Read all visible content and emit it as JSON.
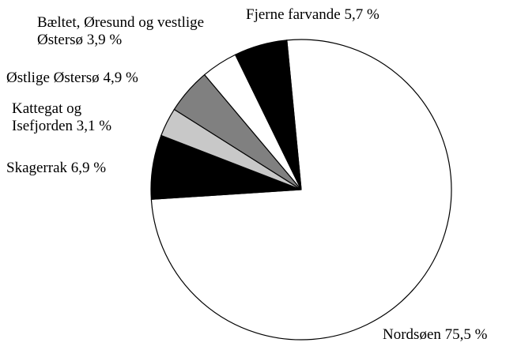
{
  "chart_data": {
    "type": "pie",
    "categories": [
      "Nordsøen",
      "Skagerrak",
      "Kattegat og Isefjorden",
      "Østlige Østersø",
      "Bæltet, Øresund og vestlige Østersø",
      "Fjerne farvande"
    ],
    "values": [
      75.5,
      6.9,
      3.1,
      4.9,
      3.9,
      5.7
    ],
    "value_labels": [
      "75,5 %",
      "6,9 %",
      "3,1 %",
      "4,9 %",
      "3,9 %",
      "5,7 %"
    ],
    "colors": [
      "#ffffff",
      "#000000",
      "#c8c8c8",
      "#808080",
      "#ffffff",
      "#000000"
    ]
  }
}
